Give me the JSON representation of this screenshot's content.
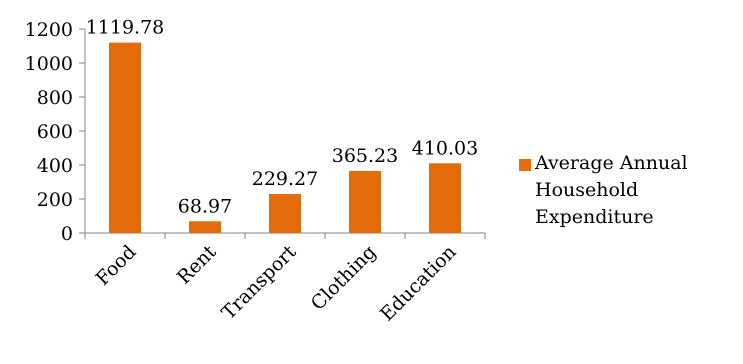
{
  "chart_data": {
    "type": "bar",
    "categories": [
      "Food",
      "Rent",
      "Transport",
      "Clothing",
      "Education"
    ],
    "series": [
      {
        "name": "Average Annual Household Expenditure",
        "values": [
          1119.78,
          68.97,
          229.27,
          365.23,
          410.03
        ],
        "color": "#E46C0A"
      }
    ],
    "data_labels": [
      "1119.78",
      "68.97",
      "229.27",
      "365.23",
      "410.03"
    ],
    "ylim": [
      0,
      1200
    ],
    "yticks": [
      0,
      200,
      400,
      600,
      800,
      1000,
      1200
    ],
    "grid": false,
    "legend_position": "right",
    "category_label_rotation": -45
  }
}
